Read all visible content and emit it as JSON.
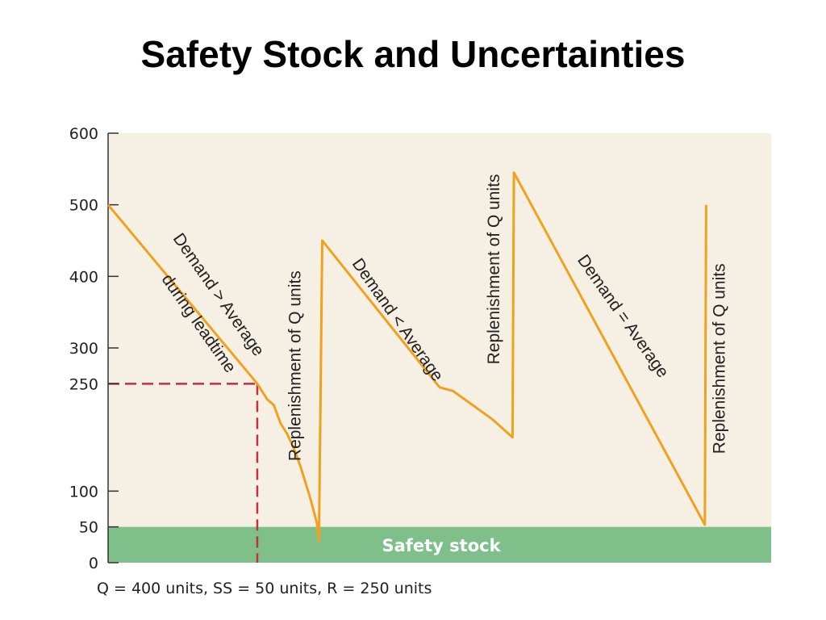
{
  "title": "Safety Stock and Uncertainties",
  "caption": "Q = 400 units, SS = 50 units, R = 250 units",
  "colors": {
    "plot_background": "#f5efe4",
    "inventory_line": "#f0a21e",
    "safety_stock_band": "#7fbf8a",
    "reorder_dashes": "#c4303a",
    "axis": "#333333"
  },
  "chart_data": {
    "type": "line",
    "ylim": [
      0,
      600
    ],
    "xlim": [
      0,
      100
    ],
    "y_ticks": [
      0,
      50,
      100,
      250,
      300,
      400,
      500,
      600
    ],
    "grid": false,
    "series": [
      {
        "values_xy": [
          [
            0,
            500
          ],
          [
            22.5,
            250
          ],
          [
            24,
            228
          ],
          [
            25,
            220
          ],
          [
            26,
            195
          ],
          [
            27,
            180
          ],
          [
            28,
            160
          ],
          [
            29,
            135
          ],
          [
            30.5,
            90
          ],
          [
            31.5,
            55
          ],
          [
            31.8,
            30
          ],
          [
            32.3,
            450
          ],
          [
            50,
            245
          ],
          [
            52,
            240
          ],
          [
            55,
            220
          ],
          [
            58,
            200
          ],
          [
            61,
            175
          ],
          [
            61.2,
            545
          ],
          [
            90,
            53
          ],
          [
            90.2,
            500
          ]
        ]
      }
    ],
    "safety_stock": {
      "value": 50,
      "label": "Safety stock"
    },
    "reorder_point": {
      "value": 250,
      "x": 22.5
    },
    "annotations": [
      {
        "text": "Demand > Average",
        "x": 16,
        "y": 370,
        "angle": 55
      },
      {
        "text": "during leadtime",
        "x": 13,
        "y": 330,
        "angle": 55
      },
      {
        "text": "Replenishment of Q units",
        "x": 29,
        "y": 275,
        "angle": -90
      },
      {
        "text": "Demand < Average",
        "x": 43,
        "y": 335,
        "angle": 55
      },
      {
        "text": "Replenishment of Q units",
        "x": 59,
        "y": 410,
        "angle": -90
      },
      {
        "text": "Demand = Average",
        "x": 77,
        "y": 340,
        "angle": 55
      },
      {
        "text": "Replenishment of Q units",
        "x": 93,
        "y": 285,
        "angle": -90
      }
    ]
  }
}
